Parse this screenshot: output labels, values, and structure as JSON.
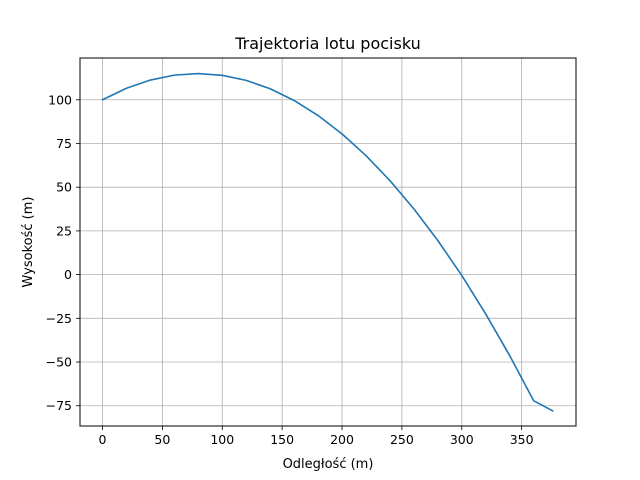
{
  "chart_data": {
    "type": "line",
    "title": "Trajektoria lotu pocisku",
    "xlabel": "Odległość (m)",
    "ylabel": "Wysokość (m)",
    "xlim": [
      -18.8,
      395.4
    ],
    "ylim": [
      -86.6,
      123.9
    ],
    "xticks": [
      0,
      50,
      100,
      150,
      200,
      250,
      300,
      350
    ],
    "xtick_labels": [
      "0",
      "50",
      "100",
      "150",
      "200",
      "250",
      "300",
      "350"
    ],
    "yticks": [
      -75,
      -50,
      -25,
      0,
      25,
      50,
      75,
      100
    ],
    "ytick_labels": [
      "−75",
      "−50",
      "−25",
      "0",
      "25",
      "50",
      "75",
      "100"
    ],
    "grid": true,
    "line_color": "#1f77b4",
    "series": [
      {
        "x": [
          0,
          20,
          40,
          60,
          80,
          100,
          120,
          140,
          160,
          180,
          200,
          220,
          240,
          260,
          280,
          300,
          320,
          340,
          360,
          376
        ],
        "y": [
          100,
          106.6,
          111.3,
          114.1,
          115.0,
          114.0,
          111.1,
          106.3,
          99.6,
          91.0,
          80.5,
          68.1,
          53.8,
          37.6,
          19.5,
          -0.5,
          -22.5,
          -46.3,
          -72.1,
          -78.0
        ]
      }
    ]
  }
}
